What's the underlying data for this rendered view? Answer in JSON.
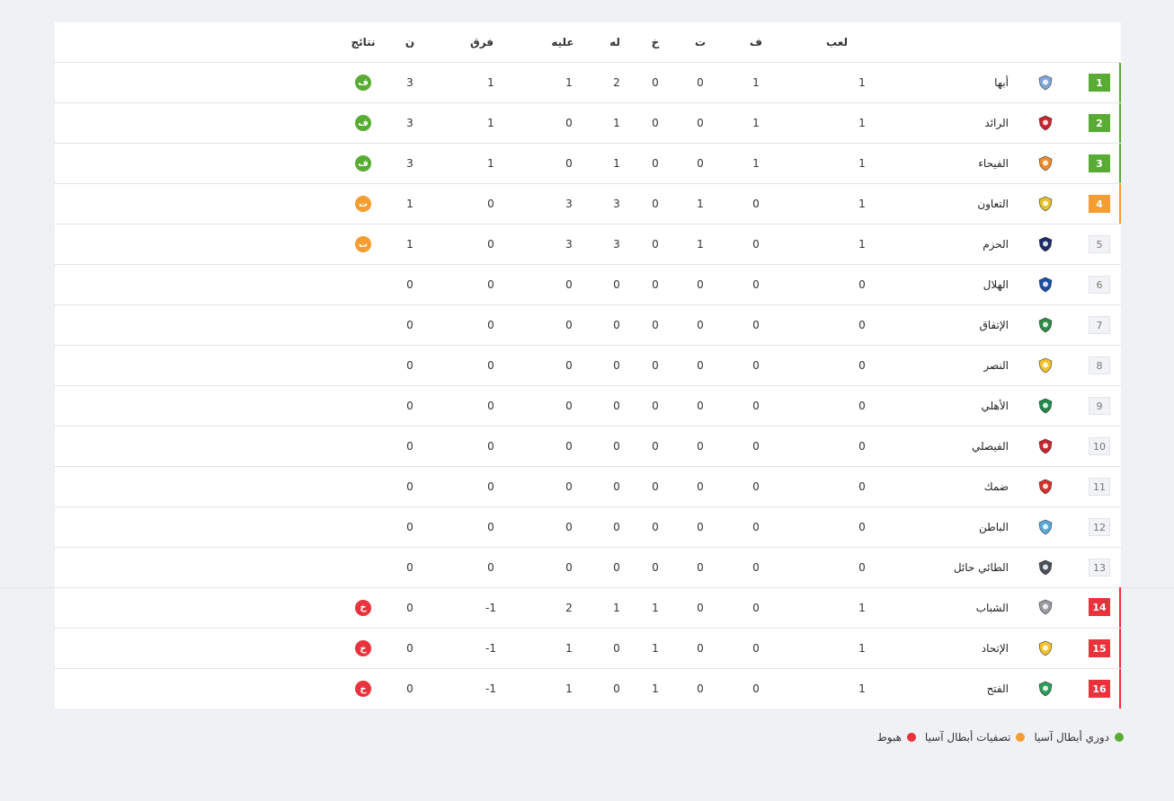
{
  "header": {
    "played": "لعب",
    "won": "ف",
    "drawn": "ت",
    "lost": "خ",
    "goals_for": "له",
    "goals_against": "عليه",
    "goal_diff": "فرق",
    "points": "ن",
    "results": "نتائج"
  },
  "colors": {
    "green": "#58ac34",
    "orange": "#f59d32",
    "red": "#e8323c"
  },
  "rows": [
    {
      "pos": "1",
      "zone": "green",
      "team": "أبها",
      "logo": "abha-crest-icon",
      "logo_color": "#7fa6d8",
      "played": "1",
      "won": "1",
      "drawn": "0",
      "lost": "0",
      "gf": "2",
      "ga": "1",
      "gd": "1",
      "pts": "3",
      "result": "ف"
    },
    {
      "pos": "2",
      "zone": "green",
      "team": "الرائد",
      "logo": "alraed-crest-icon",
      "logo_color": "#c8242c",
      "played": "1",
      "won": "1",
      "drawn": "0",
      "lost": "0",
      "gf": "1",
      "ga": "0",
      "gd": "1",
      "pts": "3",
      "result": "ف"
    },
    {
      "pos": "3",
      "zone": "green",
      "team": "الفيحاء",
      "logo": "alfayha-crest-icon",
      "logo_color": "#f08a2c",
      "played": "1",
      "won": "1",
      "drawn": "0",
      "lost": "0",
      "gf": "1",
      "ga": "0",
      "gd": "1",
      "pts": "3",
      "result": "ف"
    },
    {
      "pos": "4",
      "zone": "orange",
      "team": "التعاون",
      "logo": "altaawoun-crest-icon",
      "logo_color": "#e3c12a",
      "played": "1",
      "won": "0",
      "drawn": "1",
      "lost": "0",
      "gf": "3",
      "ga": "3",
      "gd": "0",
      "pts": "1",
      "result": "ت"
    },
    {
      "pos": "5",
      "zone": "none",
      "team": "الحزم",
      "logo": "alhazem-crest-icon",
      "logo_color": "#1e2a6b",
      "played": "1",
      "won": "0",
      "drawn": "1",
      "lost": "0",
      "gf": "3",
      "ga": "3",
      "gd": "0",
      "pts": "1",
      "result": "ت",
      "result_zone": "orange"
    },
    {
      "pos": "6",
      "zone": "none",
      "team": "الهلال",
      "logo": "alhilal-crest-icon",
      "logo_color": "#1b4ea2",
      "played": "0",
      "won": "0",
      "drawn": "0",
      "lost": "0",
      "gf": "0",
      "ga": "0",
      "gd": "0",
      "pts": "0",
      "result": ""
    },
    {
      "pos": "7",
      "zone": "none",
      "team": "الإتفاق",
      "logo": "alettifaq-crest-icon",
      "logo_color": "#2f8b47",
      "played": "0",
      "won": "0",
      "drawn": "0",
      "lost": "0",
      "gf": "0",
      "ga": "0",
      "gd": "0",
      "pts": "0",
      "result": ""
    },
    {
      "pos": "8",
      "zone": "none",
      "team": "النصر",
      "logo": "alnassr-crest-icon",
      "logo_color": "#f2c22c",
      "played": "0",
      "won": "0",
      "drawn": "0",
      "lost": "0",
      "gf": "0",
      "ga": "0",
      "gd": "0",
      "pts": "0",
      "result": ""
    },
    {
      "pos": "9",
      "zone": "none",
      "team": "الأهلي",
      "logo": "alahli-crest-icon",
      "logo_color": "#1f8a4a",
      "played": "0",
      "won": "0",
      "drawn": "0",
      "lost": "0",
      "gf": "0",
      "ga": "0",
      "gd": "0",
      "pts": "0",
      "result": ""
    },
    {
      "pos": "10",
      "zone": "none",
      "team": "الفيصلي",
      "logo": "alfaisaly-crest-icon",
      "logo_color": "#c8242c",
      "played": "0",
      "won": "0",
      "drawn": "0",
      "lost": "0",
      "gf": "0",
      "ga": "0",
      "gd": "0",
      "pts": "0",
      "result": ""
    },
    {
      "pos": "11",
      "zone": "none",
      "team": "ضمك",
      "logo": "damac-crest-icon",
      "logo_color": "#d6322c",
      "played": "0",
      "won": "0",
      "drawn": "0",
      "lost": "0",
      "gf": "0",
      "ga": "0",
      "gd": "0",
      "pts": "0",
      "result": ""
    },
    {
      "pos": "12",
      "zone": "none",
      "team": "الباطن",
      "logo": "albatin-crest-icon",
      "logo_color": "#5aa8d8",
      "played": "0",
      "won": "0",
      "drawn": "0",
      "lost": "0",
      "gf": "0",
      "ga": "0",
      "gd": "0",
      "pts": "0",
      "result": ""
    },
    {
      "pos": "13",
      "zone": "none",
      "team": "الطائي حائل",
      "logo": "altai-crest-icon",
      "logo_color": "#4a4f5a",
      "played": "0",
      "won": "0",
      "drawn": "0",
      "lost": "0",
      "gf": "0",
      "ga": "0",
      "gd": "0",
      "pts": "0",
      "result": ""
    },
    {
      "pos": "14",
      "zone": "red",
      "team": "الشباب",
      "logo": "alshabab-crest-icon",
      "logo_color": "#9a9aa0",
      "played": "1",
      "won": "0",
      "drawn": "0",
      "lost": "1",
      "gf": "1",
      "ga": "2",
      "gd": "-1",
      "pts": "0",
      "result": "خ"
    },
    {
      "pos": "15",
      "zone": "red",
      "team": "الإتحاد",
      "logo": "alittihad-crest-icon",
      "logo_color": "#f2c22c",
      "played": "1",
      "won": "0",
      "drawn": "0",
      "lost": "1",
      "gf": "0",
      "ga": "1",
      "gd": "-1",
      "pts": "0",
      "result": "خ"
    },
    {
      "pos": "16",
      "zone": "red",
      "team": "الفتح",
      "logo": "alfateh-crest-icon",
      "logo_color": "#2f9a5a",
      "played": "1",
      "won": "0",
      "drawn": "0",
      "lost": "1",
      "gf": "0",
      "ga": "1",
      "gd": "-1",
      "pts": "0",
      "result": "خ"
    }
  ],
  "legend": [
    {
      "label": "دوري أبطال آسيا",
      "color": "#58ac34"
    },
    {
      "label": "تصفيات أبطال آسيا",
      "color": "#f59d32"
    },
    {
      "label": "هبوط",
      "color": "#e8323c"
    }
  ]
}
